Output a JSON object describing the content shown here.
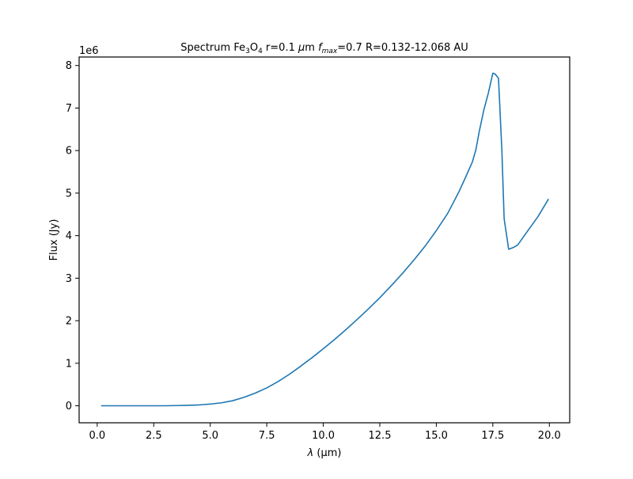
{
  "chart_data": {
    "type": "line",
    "title": {
      "prefix": "Spectrum Fe",
      "sub1": "3",
      "mid1": "O",
      "sub2": "4",
      "mid2": " r=0.1 ",
      "mu": "μ",
      "mid3": "m ",
      "fmax_f": "f",
      "fmax_sub": "max",
      "suffix": "=0.7 R=0.132-12.068 AU"
    },
    "xlabel": {
      "lambda": "λ",
      "rest": " (μm)"
    },
    "ylabel": "Flux (Jy)",
    "y_offset_label": "1e6",
    "xlim": [
      -0.8,
      20.9
    ],
    "ylim": [
      -0.4,
      8.2
    ],
    "y_scale_factor": 1000000,
    "xticks": [
      0.0,
      2.5,
      5.0,
      7.5,
      10.0,
      12.5,
      15.0,
      17.5,
      20.0
    ],
    "xtick_labels": [
      "0.0",
      "2.5",
      "5.0",
      "7.5",
      "10.0",
      "12.5",
      "15.0",
      "17.5",
      "20.0"
    ],
    "yticks": [
      0,
      1,
      2,
      3,
      4,
      5,
      6,
      7,
      8
    ],
    "ytick_labels": [
      "0",
      "1",
      "2",
      "3",
      "4",
      "5",
      "6",
      "7",
      "8"
    ],
    "grid": false,
    "series": [
      {
        "color": "#1f77b4",
        "x": [
          0.2,
          1.0,
          2.0,
          3.0,
          3.5,
          4.0,
          4.5,
          5.0,
          5.5,
          6.0,
          6.5,
          7.0,
          7.5,
          8.0,
          8.5,
          9.0,
          9.5,
          10.0,
          10.5,
          11.0,
          11.5,
          12.0,
          12.5,
          13.0,
          13.5,
          14.0,
          14.5,
          15.0,
          15.5,
          16.0,
          16.3,
          16.6,
          16.75,
          16.9,
          17.1,
          17.3,
          17.5,
          17.6,
          17.75,
          17.9,
          18.0,
          18.2,
          18.4,
          18.6,
          19.0,
          19.5,
          19.95
        ],
        "y": [
          0.0,
          0.0,
          0.0,
          0.0,
          0.005,
          0.01,
          0.02,
          0.04,
          0.07,
          0.12,
          0.2,
          0.3,
          0.42,
          0.57,
          0.74,
          0.93,
          1.13,
          1.34,
          1.56,
          1.79,
          2.03,
          2.28,
          2.54,
          2.82,
          3.11,
          3.42,
          3.75,
          4.12,
          4.52,
          5.03,
          5.38,
          5.74,
          6.02,
          6.45,
          6.95,
          7.35,
          7.82,
          7.8,
          7.7,
          6.0,
          4.4,
          3.68,
          3.72,
          3.78,
          4.08,
          4.45,
          4.85
        ]
      }
    ]
  }
}
